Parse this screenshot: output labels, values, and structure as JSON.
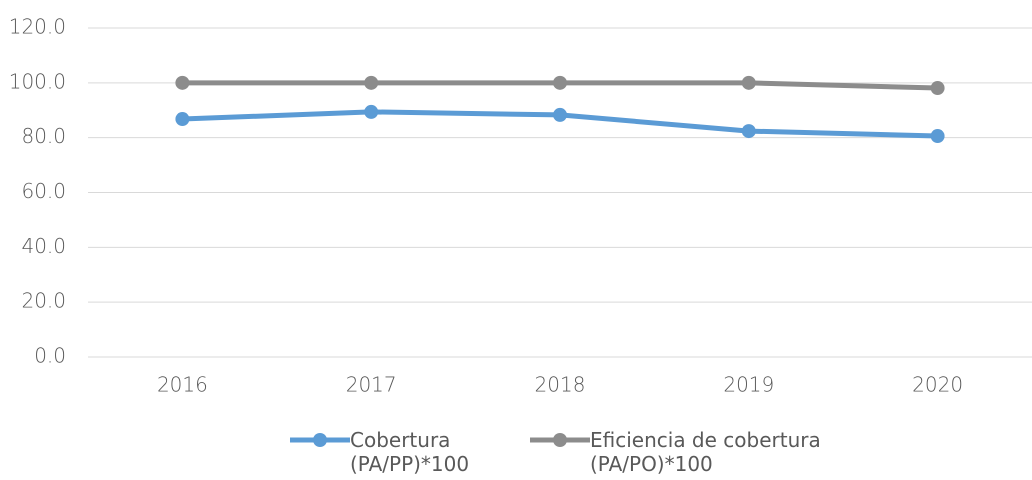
{
  "chart_data": {
    "type": "line",
    "categories": [
      "2016",
      "2017",
      "2018",
      "2019",
      "2020"
    ],
    "series": [
      {
        "name": "Cobertura (PA/PP)*100",
        "color": "#5b9bd5",
        "values": [
          86.8,
          89.4,
          88.3,
          82.4,
          80.6
        ]
      },
      {
        "name": "Eficiencia de cobertura (PA/PO)*100",
        "color": "#8c8c8c",
        "values": [
          100,
          100,
          100,
          100,
          98.1
        ]
      }
    ],
    "ylim": [
      0,
      120
    ],
    "yticks": [
      {
        "value": 0,
        "label": "0.0"
      },
      {
        "value": 20,
        "label": "20.0"
      },
      {
        "value": 40,
        "label": "40.0"
      },
      {
        "value": 60,
        "label": "60.0"
      },
      {
        "value": 80,
        "label": "80.0"
      },
      {
        "value": 100,
        "label": "100.0"
      },
      {
        "value": 120,
        "label": "120.0"
      }
    ],
    "grid": true,
    "legend": "bottom"
  }
}
